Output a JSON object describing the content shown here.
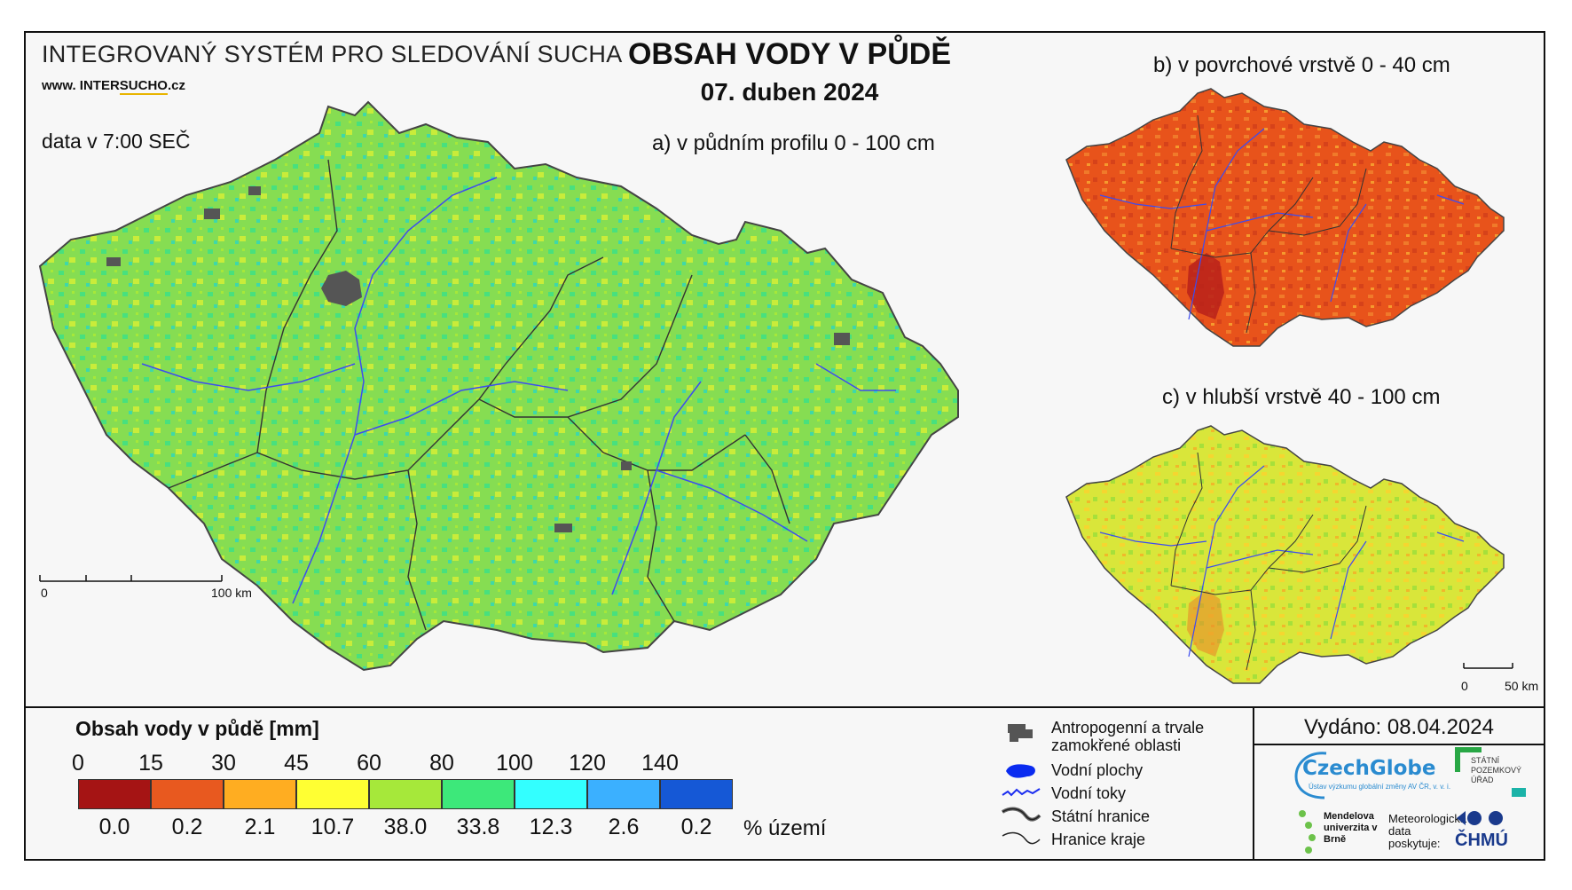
{
  "header": {
    "system_title": "INTEGROVANÝ SYSTÉM PRO SLEDOVÁNÍ SUCHA",
    "website_prefix": "www. INTER",
    "website_accent": "SUCHO",
    "website_suffix": ".cz",
    "data_time": "data v 7:00 SEČ",
    "main_title": "OBSAH VODY V PŮDĚ",
    "main_date": "07. duben 2024"
  },
  "maps": {
    "a_title": "a) v půdním profilu 0 - 100 cm",
    "b_title": "b) v povrchové vrstvě 0 - 40 cm",
    "c_title": "c) v hlubší vrstvě 40 - 100 cm",
    "a_scale_start": "0",
    "a_scale_end": "100 km",
    "c_scale_start": "0",
    "c_scale_end": "50 km",
    "a_dominant_color": "#7ed957",
    "b_dominant_color": "#e8531b",
    "c_dominant_color": "#d8e83a"
  },
  "legend": {
    "title": "Obsah vody v půdě  [mm]",
    "ticks": [
      "0",
      "15",
      "30",
      "45",
      "60",
      "80",
      "100",
      "120",
      "140"
    ],
    "colors": [
      "#a51414",
      "#e8591f",
      "#ffad21",
      "#ffff33",
      "#a6e83a",
      "#3de87a",
      "#33ffff",
      "#3bb0ff",
      "#1558d6"
    ],
    "percentages": [
      "0.0",
      "0.2",
      "2.1",
      "10.7",
      "38.0",
      "33.8",
      "12.3",
      "2.6",
      "0.2"
    ],
    "pct_unit": "% území"
  },
  "symbols": {
    "anthropogenic_line1": "Antropogenní a trvale",
    "anthropogenic_line2": "zamokřené oblasti",
    "water_bodies": "Vodní plochy",
    "water_streams": "Vodní toky",
    "state_border": "Státní hranice",
    "region_border": "Hranice kraje"
  },
  "footer": {
    "issued": "Vydáno: 08.04.2024",
    "czechglobe": "CzechGlobe",
    "czechglobe_sub": "Ústav výzkumu globální změny AV ČR, v. v. i.",
    "spu": "STÁTNÍ POZEMKOVÝ ÚŘAD",
    "mendel": "Mendelova univerzita v Brně",
    "meteo_text": "Meteorologická data poskytuje:",
    "chmu": "ČHMÚ"
  }
}
